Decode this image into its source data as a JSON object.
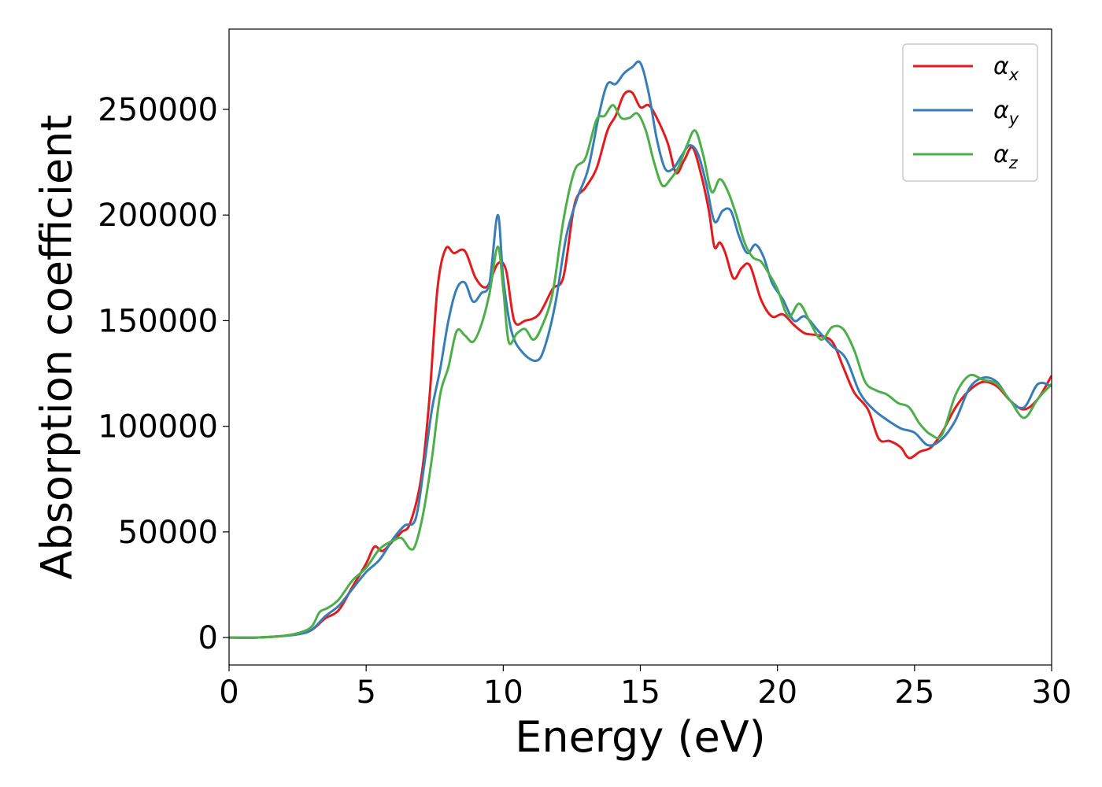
{
  "chart_data": {
    "type": "line",
    "xlabel": "Energy (eV)",
    "ylabel": "Absorption coefficient",
    "xlim": [
      0,
      30
    ],
    "ylim": [
      -13000,
      288000
    ],
    "xticks": [
      0,
      5,
      10,
      15,
      20,
      25,
      30
    ],
    "xtick_labels": [
      "0",
      "5",
      "10",
      "15",
      "20",
      "25",
      "30"
    ],
    "yticks": [
      0,
      50000,
      100000,
      150000,
      200000,
      250000
    ],
    "ytick_labels": [
      "0",
      "50000",
      "100000",
      "150000",
      "200000",
      "250000"
    ],
    "grid": false,
    "legend_position": "top-right",
    "series": [
      {
        "name": "α",
        "subscript": "x",
        "color": "#e41a1c",
        "x": [
          0,
          1,
          2,
          2.5,
          3,
          3.5,
          4,
          4.5,
          5,
          5.3,
          5.6,
          6,
          6.3,
          6.6,
          7,
          7.3,
          7.6,
          7.9,
          8.2,
          8.6,
          9.0,
          9.4,
          9.8,
          10.1,
          10.4,
          10.8,
          11.3,
          11.8,
          12.2,
          12.6,
          13.0,
          13.4,
          13.8,
          14.1,
          14.4,
          14.7,
          15.0,
          15.3,
          15.6,
          16.0,
          16.3,
          16.6,
          16.9,
          17.2,
          17.5,
          17.7,
          17.9,
          18.1,
          18.4,
          18.7,
          19.0,
          19.4,
          19.8,
          20.2,
          20.6,
          21.0,
          21.5,
          22.0,
          22.4,
          22.8,
          23.3,
          23.7,
          24.1,
          24.5,
          24.8,
          25.2,
          25.6,
          26.0,
          26.5,
          27.0,
          27.5,
          28.0,
          28.5,
          29.0,
          29.5,
          30.0
        ],
        "y": [
          0,
          0,
          800,
          2000,
          3500,
          9000,
          13000,
          24000,
          35000,
          43000,
          41000,
          46000,
          50000,
          54000,
          75000,
          112000,
          165000,
          184000,
          182000,
          183000,
          170000,
          166000,
          177000,
          174000,
          150000,
          150000,
          153000,
          165000,
          171000,
          205000,
          213000,
          222000,
          240000,
          247000,
          257000,
          258000,
          251000,
          252000,
          246000,
          234000,
          220000,
          226000,
          232000,
          220000,
          202000,
          185000,
          187000,
          182000,
          170000,
          175000,
          176000,
          160000,
          152000,
          153000,
          148000,
          144000,
          143000,
          140000,
          128000,
          116000,
          108000,
          94000,
          93000,
          90000,
          85000,
          88000,
          90000,
          97000,
          109000,
          117000,
          121000,
          119000,
          112000,
          108000,
          113000,
          124000
        ]
      },
      {
        "name": "α",
        "subscript": "y",
        "color": "#377eb8",
        "x": [
          0,
          1,
          2,
          2.5,
          3,
          3.5,
          4,
          4.5,
          5,
          5.5,
          6,
          6.4,
          6.8,
          7.1,
          7.4,
          7.7,
          8.0,
          8.3,
          8.6,
          8.9,
          9.2,
          9.5,
          9.8,
          10.0,
          10.3,
          10.7,
          11.2,
          11.5,
          11.9,
          12.3,
          12.7,
          13.1,
          13.5,
          13.8,
          14.1,
          14.4,
          14.7,
          15.0,
          15.3,
          15.6,
          15.9,
          16.2,
          16.5,
          16.8,
          17.1,
          17.4,
          17.7,
          18.0,
          18.3,
          18.6,
          18.9,
          19.2,
          19.5,
          19.8,
          20.2,
          20.6,
          21.0,
          21.5,
          22.0,
          22.5,
          23.0,
          23.5,
          24.0,
          24.5,
          25.0,
          25.5,
          26.0,
          26.5,
          27.0,
          27.5,
          28.0,
          28.5,
          29.0,
          29.5,
          30.0
        ],
        "y": [
          0,
          0,
          800,
          1500,
          3500,
          10000,
          15000,
          23000,
          31000,
          37000,
          47000,
          53000,
          56000,
          80000,
          108000,
          127000,
          150000,
          165000,
          168000,
          159000,
          163000,
          168000,
          200000,
          170000,
          145000,
          135000,
          131000,
          137000,
          158000,
          190000,
          208000,
          222000,
          248000,
          262000,
          262000,
          267000,
          270000,
          272000,
          258000,
          236000,
          222000,
          222000,
          228000,
          233000,
          229000,
          215000,
          197000,
          202000,
          202000,
          190000,
          182000,
          186000,
          180000,
          168000,
          160000,
          150000,
          152000,
          145000,
          138000,
          132000,
          116000,
          108000,
          103000,
          99000,
          97000,
          91000,
          94000,
          103000,
          118000,
          123000,
          121000,
          112000,
          109000,
          120000,
          119000
        ]
      },
      {
        "name": "α",
        "subscript": "z",
        "color": "#4daf4a",
        "x": [
          0,
          1,
          2,
          2.5,
          3,
          3.3,
          3.6,
          4.0,
          4.5,
          5.0,
          5.5,
          6.0,
          6.3,
          6.6,
          6.8,
          7.1,
          7.4,
          7.7,
          8.0,
          8.3,
          8.6,
          8.9,
          9.2,
          9.5,
          9.8,
          10.0,
          10.2,
          10.5,
          10.8,
          11.1,
          11.4,
          11.8,
          12.2,
          12.6,
          13.0,
          13.4,
          13.7,
          14.0,
          14.3,
          14.6,
          14.9,
          15.2,
          15.5,
          15.8,
          16.1,
          16.4,
          16.7,
          17.0,
          17.3,
          17.6,
          17.9,
          18.2,
          18.5,
          18.8,
          19.1,
          19.4,
          19.7,
          20.0,
          20.4,
          20.8,
          21.2,
          21.6,
          22.0,
          22.4,
          22.8,
          23.2,
          23.6,
          24.0,
          24.4,
          24.8,
          25.2,
          25.6,
          26.0,
          26.5,
          27.0,
          27.5,
          28.0,
          28.5,
          29.0,
          29.5,
          30.0
        ],
        "y": [
          0,
          0,
          800,
          2000,
          5000,
          12000,
          14000,
          18000,
          27000,
          33000,
          42000,
          46000,
          47000,
          42000,
          44000,
          60000,
          85000,
          115000,
          128000,
          145000,
          143000,
          140000,
          148000,
          163000,
          185000,
          165000,
          140000,
          144000,
          146000,
          141000,
          147000,
          163000,
          198000,
          221000,
          227000,
          245000,
          247000,
          252000,
          246000,
          246000,
          248000,
          240000,
          225000,
          214000,
          217000,
          223000,
          233000,
          240000,
          228000,
          211000,
          217000,
          211000,
          200000,
          187000,
          180000,
          178000,
          172000,
          165000,
          152000,
          158000,
          149000,
          141000,
          147000,
          146000,
          136000,
          121000,
          117000,
          115000,
          111000,
          109000,
          101000,
          96000,
          96000,
          115000,
          124000,
          122000,
          120000,
          112000,
          104000,
          113000,
          120000
        ]
      }
    ]
  }
}
